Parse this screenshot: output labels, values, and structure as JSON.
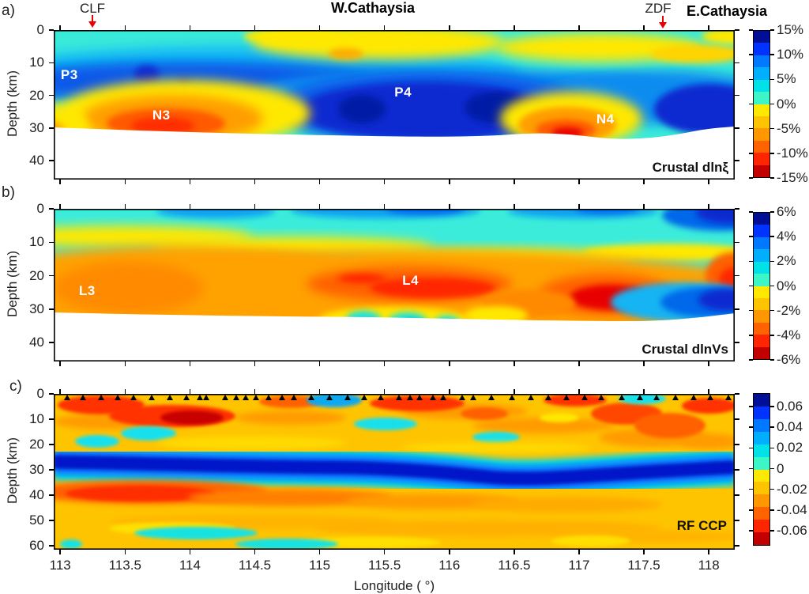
{
  "header": {
    "panel_letters": [
      "a)",
      "b)",
      "c)"
    ],
    "fault_labels": [
      {
        "text": "CLF"
      },
      {
        "text": "ZDF"
      }
    ],
    "region_labels": [
      "W.Cathaysia",
      "E.Cathaysia"
    ],
    "arrow_color": "#e60000"
  },
  "axes": {
    "x": {
      "label": "Longitude ( °)",
      "min": 112.95,
      "max": 118.2,
      "ticks": [
        113,
        113.5,
        114,
        114.5,
        115,
        115.5,
        116,
        116.5,
        117,
        117.5,
        118
      ],
      "tick_labels": [
        "113",
        "113.5",
        "114",
        "114.5",
        "115",
        "115.5",
        "116",
        "116.5",
        "117",
        "117.5",
        "118"
      ]
    }
  },
  "chart_data": [
    {
      "type": "heatmap",
      "panel": "a",
      "title": "Crustal dlnξ",
      "xlabel": "Longitude ( °)",
      "ylabel": "Depth (km)",
      "xlim": [
        112.95,
        118.2
      ],
      "ylim_km": [
        0,
        46
      ],
      "yticks": [
        0,
        10,
        20,
        30,
        40
      ],
      "colorbar": {
        "vmax": 15,
        "vmin": -15,
        "tick_values": [
          15,
          10,
          5,
          0,
          -5,
          -10,
          -15
        ],
        "tick_labels": [
          "15%",
          "10%",
          "5%",
          "0%",
          "-5%",
          "-10%",
          "-15%"
        ],
        "colors": [
          "#000f96",
          "#0033ff",
          "#0078ff",
          "#00b0ff",
          "#00e2e8",
          "#3cf6c8",
          "#ffe900",
          "#ffc400",
          "#ff9800",
          "#ff6300",
          "#ff2500",
          "#c30000"
        ]
      },
      "annotations": [
        {
          "text": "P3",
          "fx": 0.023,
          "fy": 0.3,
          "approx_lon": 113.07,
          "approx_depth_km": 13
        },
        {
          "text": "N3",
          "fx": 0.158,
          "fy": 0.57,
          "approx_lon": 113.8,
          "approx_depth_km": 26
        },
        {
          "text": "P4",
          "fx": 0.513,
          "fy": 0.42,
          "approx_lon": 115.6,
          "approx_depth_km": 19
        },
        {
          "text": "N4",
          "fx": 0.81,
          "fy": 0.6,
          "approx_lon": 117.2,
          "approx_depth_km": 27
        }
      ],
      "features": [
        "Positive (blue) radial anisotropy layer through the mid-crust along the whole profile",
        "Strong positive anomaly P4 between ~114.7–116.3°, 10–30 km depth",
        "Negative anomalies N3 (~113.3–114.3°, 20–30 km) and N4 (~117.0–117.5°, 20–30 km)",
        "Weak negative (yellow) patches near the surface at ~114.3–115.7° and ~116.8–118.2°",
        "Region below the Moho (~31 km) is blanked white"
      ]
    },
    {
      "type": "heatmap",
      "panel": "b",
      "title": "Crustal dlnVs",
      "xlabel": "Longitude ( °)",
      "ylabel": "Depth (km)",
      "xlim": [
        112.95,
        118.2
      ],
      "ylim_km": [
        0,
        46
      ],
      "yticks": [
        0,
        10,
        20,
        30,
        40
      ],
      "colorbar": {
        "vmax": 6,
        "vmin": -6,
        "tick_values": [
          6,
          4,
          2,
          0,
          -2,
          -4,
          -6
        ],
        "tick_labels": [
          "6%",
          "4%",
          "2%",
          "0%",
          "-2%",
          "-4%",
          "-6%"
        ],
        "colors": [
          "#000f96",
          "#0033ff",
          "#0078ff",
          "#00b0ff",
          "#00e2e8",
          "#3cf6c8",
          "#ffe900",
          "#ffc400",
          "#ff9800",
          "#ff6300",
          "#ff2500",
          "#c30000"
        ]
      },
      "annotations": [
        {
          "text": "L3",
          "fx": 0.049,
          "fy": 0.54,
          "approx_lon": 113.2,
          "approx_depth_km": 25
        },
        {
          "text": "L4",
          "fx": 0.524,
          "fy": 0.47,
          "approx_lon": 115.7,
          "approx_depth_km": 21
        }
      ],
      "features": [
        "Low-velocity (orange/red) mid-to-lower crust along most of the profile",
        "Strongest lows near 114.8–115.6° (L4) and 116.5–117.2° at 15–30 km",
        "High Vs (blue/cyan) in the uppermost crust and in the lower crust east of ~117.5°",
        "Small high-Vs pockets near 114.8–115.1° at ~28 km",
        "Region below the Moho (~31 km) is blanked white"
      ]
    },
    {
      "type": "heatmap",
      "panel": "c",
      "title": "RF CCP",
      "xlabel": "Longitude ( °)",
      "ylabel": "Depth (km)",
      "xlim": [
        112.95,
        118.2
      ],
      "ylim_km": [
        0,
        61.5
      ],
      "yticks": [
        0,
        10,
        20,
        30,
        40,
        50,
        60
      ],
      "colorbar": {
        "vmax": 0.073,
        "vmin": -0.0745,
        "tick_values": [
          0.06,
          0.04,
          0.02,
          0,
          -0.02,
          -0.04,
          -0.06
        ],
        "tick_labels": [
          "0.06",
          "0.04",
          "0.02",
          "0",
          "-0.02",
          "-0.04",
          "-0.06"
        ],
        "colors": [
          "#000f96",
          "#0033ff",
          "#0078ff",
          "#00b0ff",
          "#00e2e8",
          "#3cf6c8",
          "#ffe900",
          "#ffc400",
          "#ff9800",
          "#ff6300",
          "#ff2500",
          "#c30000"
        ]
      },
      "annotations": [],
      "station_marker": "black triangle",
      "stations_fx": [
        0.02,
        0.043,
        0.07,
        0.095,
        0.118,
        0.145,
        0.171,
        0.196,
        0.215,
        0.225,
        0.252,
        0.269,
        0.283,
        0.298,
        0.316,
        0.336,
        0.353,
        0.379,
        0.406,
        0.432,
        0.457,
        0.481,
        0.507,
        0.524,
        0.538,
        0.557,
        0.573,
        0.6,
        0.617,
        0.643,
        0.673,
        0.701,
        0.727,
        0.754,
        0.78,
        0.805,
        0.835,
        0.861,
        0.886,
        0.913,
        0.94,
        0.965,
        0.991
      ],
      "features": [
        "Continuous positive (blue) Moho conversion at ~25–35 km, deepest (~33 km) near 115.8°",
        "Negative (red/orange) arrivals in the upper crust (0–15 km) and below the Moho (35–45 km)",
        "Mottled weak-negative (yellow/orange) field elsewhere with scattered cyan pockets near 55–60 km west of 114.5°",
        "Seismic stations shown as black triangles along the top axis"
      ]
    }
  ]
}
